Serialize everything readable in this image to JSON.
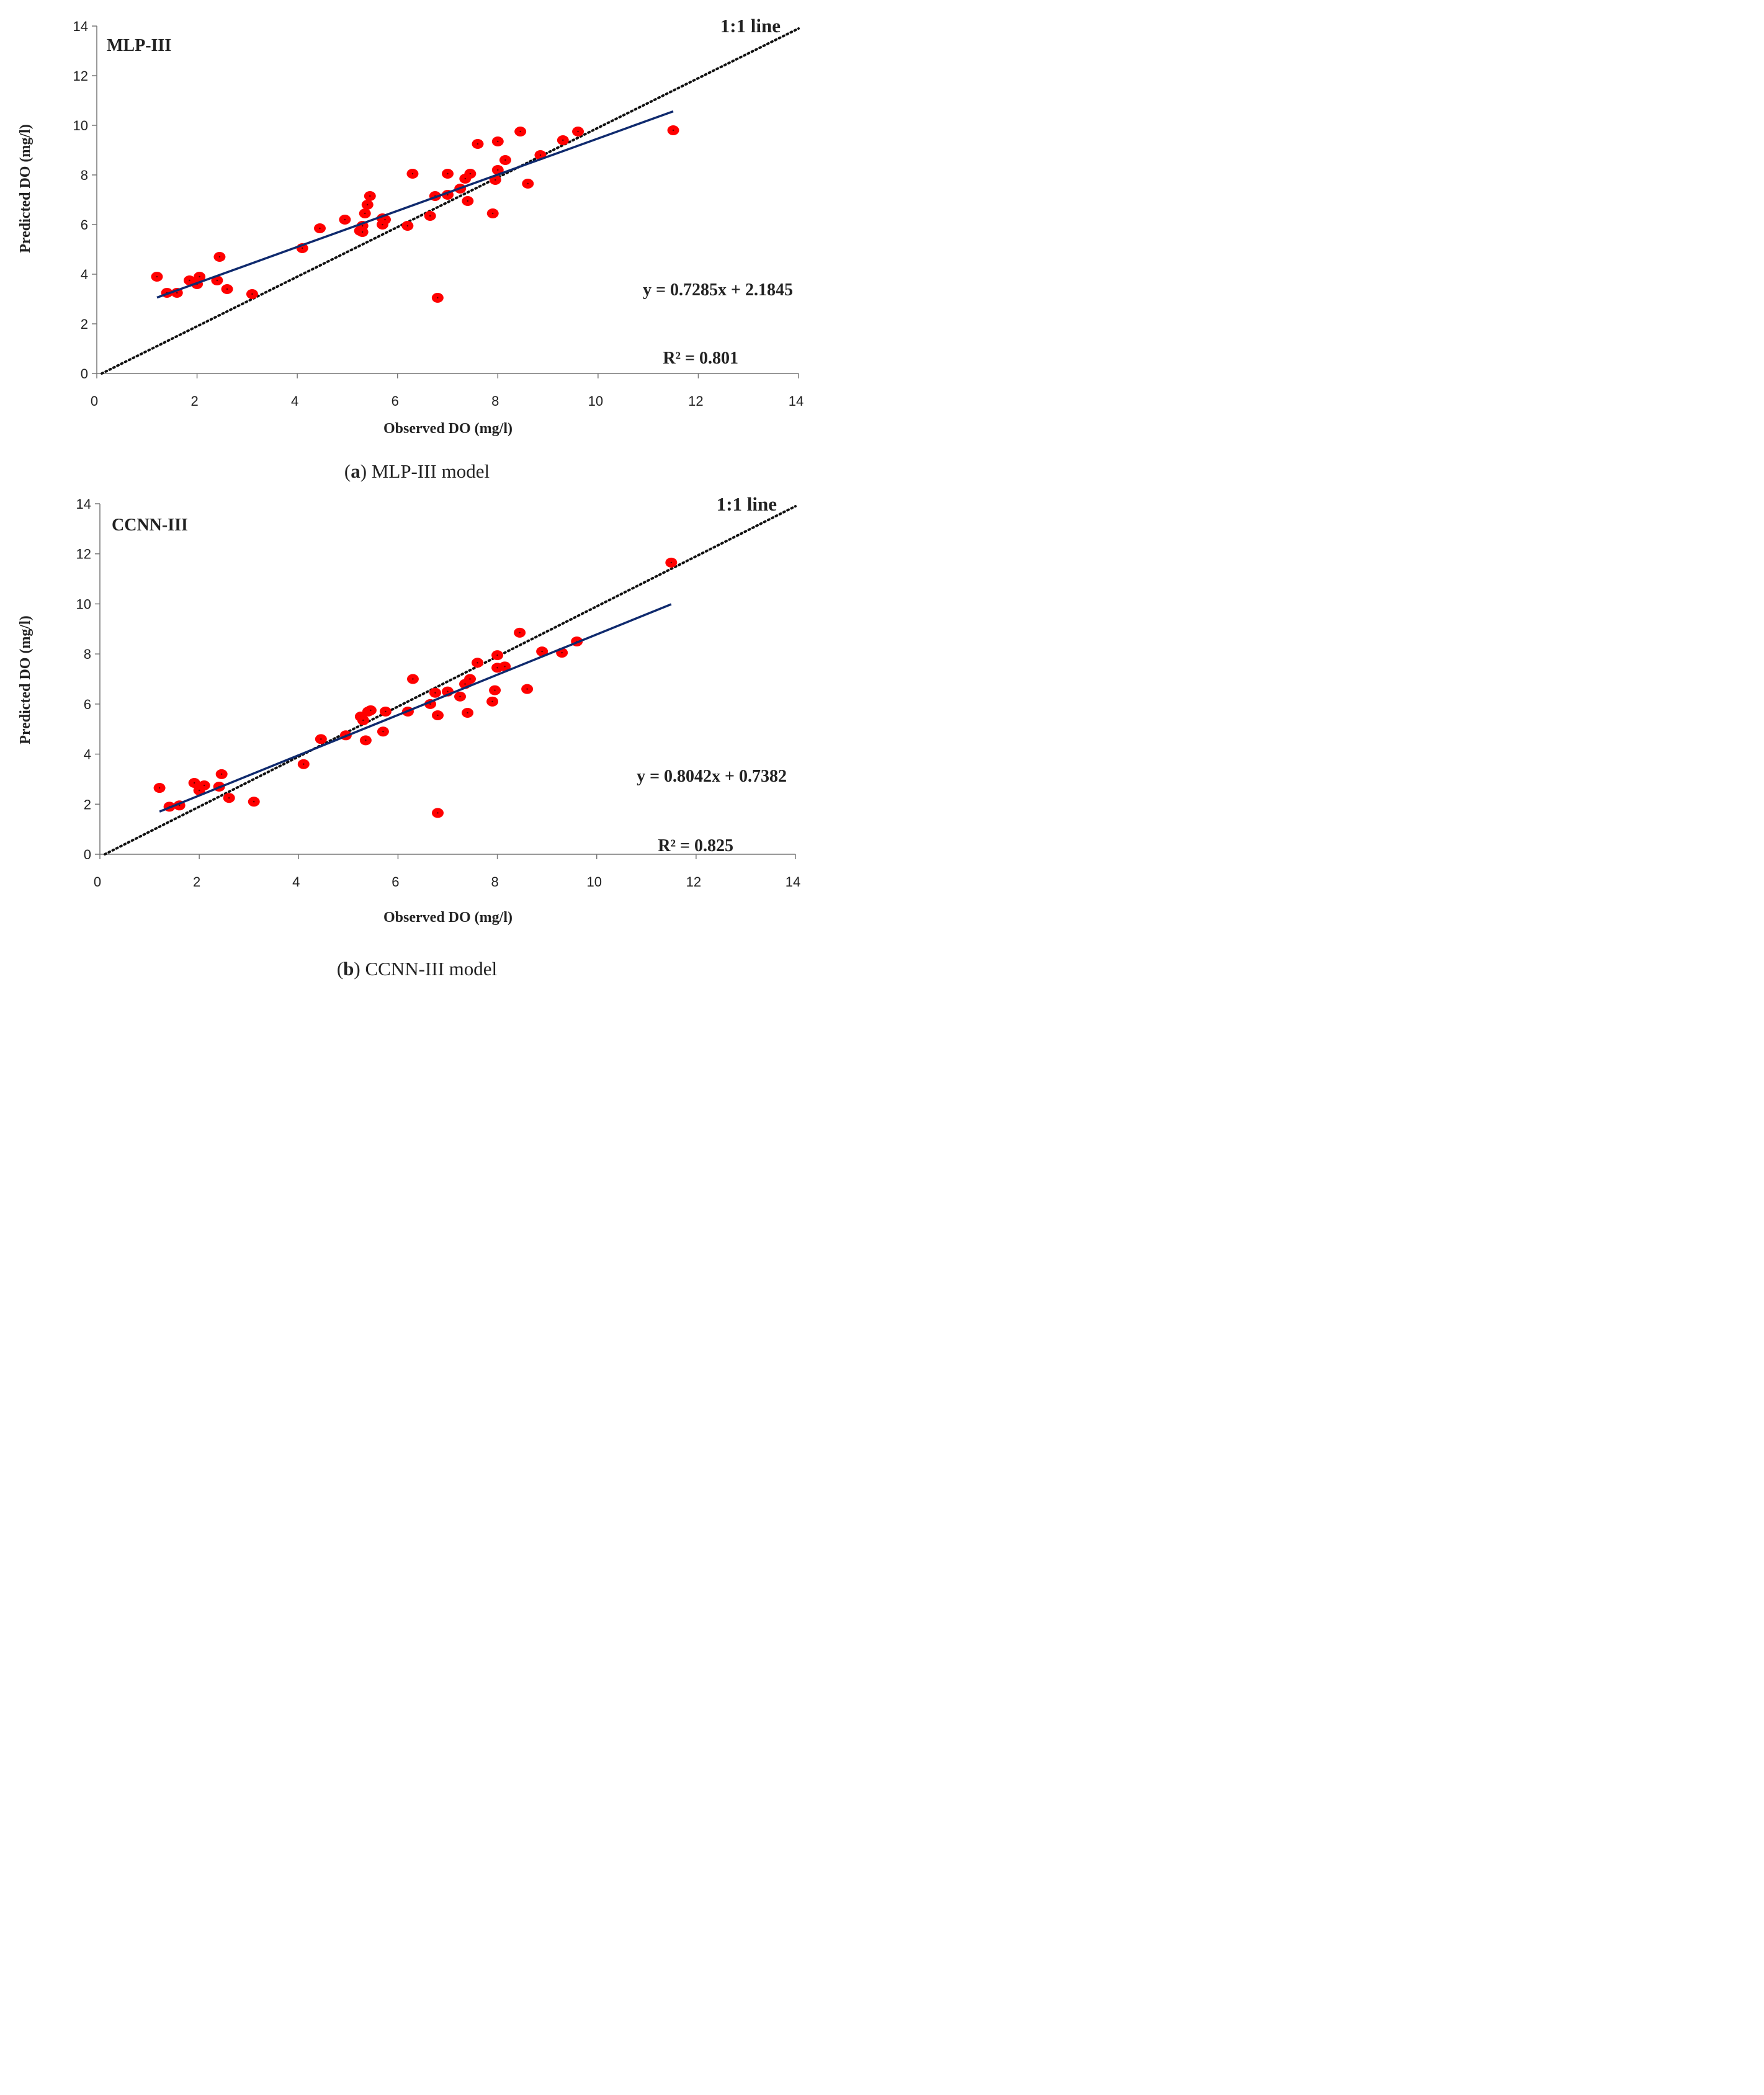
{
  "chart_data": [
    {
      "type": "scatter",
      "model_label": "MLP-III",
      "xlabel": "Observed DO (mg/l)",
      "ylabel": "Predicted DO (mg/l)",
      "xlim": [
        0,
        14
      ],
      "ylim": [
        0,
        14
      ],
      "xticks": [
        "0",
        "2",
        "4",
        "6",
        "8",
        "10",
        "12",
        "14"
      ],
      "yticks": [
        "0",
        "2",
        "4",
        "6",
        "8",
        "10",
        "12",
        "14"
      ],
      "reference_line_label": "1:1 line",
      "equation": "y = 0.7285x + 2.1845",
      "r_squared": "R² = 0.801",
      "fit": {
        "slope": 0.7285,
        "intercept": 2.1845,
        "x_range": [
          1.2,
          11.5
        ]
      },
      "caption_letter": "a",
      "caption_text": "MLP-III model",
      "points": [
        [
          1.2,
          3.9
        ],
        [
          1.4,
          3.25
        ],
        [
          1.6,
          3.25
        ],
        [
          1.85,
          3.75
        ],
        [
          2.0,
          3.6
        ],
        [
          2.05,
          3.9
        ],
        [
          2.4,
          3.75
        ],
        [
          2.45,
          4.7
        ],
        [
          2.6,
          3.4
        ],
        [
          3.1,
          3.2
        ],
        [
          4.1,
          5.05
        ],
        [
          4.45,
          5.85
        ],
        [
          4.95,
          6.2
        ],
        [
          5.25,
          5.75
        ],
        [
          5.3,
          5.7
        ],
        [
          5.3,
          5.95
        ],
        [
          5.35,
          6.45
        ],
        [
          5.4,
          6.8
        ],
        [
          5.45,
          7.15
        ],
        [
          5.7,
          6.0
        ],
        [
          5.7,
          6.25
        ],
        [
          5.75,
          6.2
        ],
        [
          6.2,
          5.95
        ],
        [
          6.3,
          8.05
        ],
        [
          6.65,
          6.35
        ],
        [
          6.75,
          7.15
        ],
        [
          6.8,
          3.05
        ],
        [
          7.0,
          8.05
        ],
        [
          7.0,
          7.2
        ],
        [
          7.25,
          7.45
        ],
        [
          7.35,
          7.85
        ],
        [
          7.4,
          6.95
        ],
        [
          7.45,
          8.05
        ],
        [
          7.6,
          9.25
        ],
        [
          7.9,
          6.45
        ],
        [
          7.95,
          7.8
        ],
        [
          8.0,
          9.35
        ],
        [
          8.0,
          8.2
        ],
        [
          8.15,
          8.6
        ],
        [
          8.45,
          9.75
        ],
        [
          8.6,
          7.65
        ],
        [
          8.85,
          8.8
        ],
        [
          9.3,
          9.4
        ],
        [
          9.6,
          9.75
        ],
        [
          11.5,
          9.8
        ]
      ]
    },
    {
      "type": "scatter",
      "model_label": "CCNN-III",
      "xlabel": "Observed DO (mg/l)",
      "ylabel": "Predicted DO (mg/l)",
      "xlim": [
        0,
        14
      ],
      "ylim": [
        0,
        14
      ],
      "xticks": [
        "0",
        "2",
        "4",
        "6",
        "8",
        "10",
        "12",
        "14"
      ],
      "yticks": [
        "0",
        "2",
        "4",
        "6",
        "8",
        "10",
        "12",
        "14"
      ],
      "reference_line_label": "1:1 line",
      "equation": "y = 0.8042x + 0.7382",
      "r_squared": "R² = 0.825",
      "fit": {
        "slope": 0.8042,
        "intercept": 0.7382,
        "x_range": [
          1.2,
          11.5
        ]
      },
      "caption_letter": "b",
      "caption_text": "CCNN-III model",
      "points": [
        [
          1.2,
          2.65
        ],
        [
          1.4,
          1.9
        ],
        [
          1.6,
          1.95
        ],
        [
          1.9,
          2.85
        ],
        [
          2.0,
          2.55
        ],
        [
          2.1,
          2.75
        ],
        [
          2.4,
          2.7
        ],
        [
          2.45,
          3.2
        ],
        [
          2.6,
          2.25
        ],
        [
          3.1,
          2.1
        ],
        [
          4.1,
          3.6
        ],
        [
          4.45,
          4.6
        ],
        [
          4.95,
          4.75
        ],
        [
          5.25,
          5.5
        ],
        [
          5.3,
          5.35
        ],
        [
          5.35,
          4.55
        ],
        [
          5.4,
          5.7
        ],
        [
          5.45,
          5.75
        ],
        [
          5.7,
          4.9
        ],
        [
          5.75,
          5.7
        ],
        [
          6.2,
          5.7
        ],
        [
          6.3,
          7.0
        ],
        [
          6.65,
          6.0
        ],
        [
          6.75,
          6.45
        ],
        [
          6.8,
          5.55
        ],
        [
          6.8,
          1.65
        ],
        [
          7.0,
          6.5
        ],
        [
          7.25,
          6.3
        ],
        [
          7.35,
          6.8
        ],
        [
          7.4,
          5.65
        ],
        [
          7.45,
          7.0
        ],
        [
          7.6,
          7.65
        ],
        [
          7.9,
          6.1
        ],
        [
          7.95,
          6.55
        ],
        [
          8.0,
          7.95
        ],
        [
          8.0,
          7.45
        ],
        [
          8.15,
          7.5
        ],
        [
          8.45,
          8.85
        ],
        [
          8.6,
          6.6
        ],
        [
          8.9,
          8.1
        ],
        [
          9.3,
          8.05
        ],
        [
          9.6,
          8.5
        ],
        [
          11.5,
          11.65
        ]
      ]
    }
  ]
}
